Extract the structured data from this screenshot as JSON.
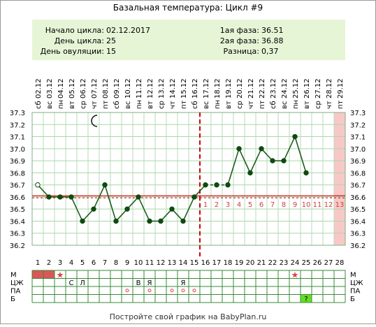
{
  "title": "Базальная температура: Цикл #9",
  "summary": {
    "cycle_start_label": "Начало цикла:",
    "cycle_start_value": "02.12.2017",
    "cycle_day_label": "День цикла:",
    "cycle_day_value": "25",
    "ovulation_day_label": "День овуляции:",
    "ovulation_day_value": "15",
    "phase1_label": "1ая фаза:",
    "phase1_value": "36.51",
    "phase2_label": "2ая фаза:",
    "phase2_value": "36.88",
    "diff_label": "Разница:",
    "diff_value": "0,37"
  },
  "footer": "Постройте свой график на BabyPlan.ru",
  "colors": {
    "summary_bg": "#e6f5d6",
    "line": "#1f5e1f",
    "point": "#0f4a0f",
    "coverline": "#cc0000",
    "ovulation_line": "#cc0000",
    "phase_label": "#d04040",
    "forecast_fill": "#f8c8c8",
    "bar_fill": "#d95757",
    "star": "#e04040",
    "green_cell": "#66dd22"
  },
  "chart_data": {
    "type": "line",
    "days": [
      1,
      2,
      3,
      4,
      5,
      6,
      7,
      8,
      9,
      10,
      11,
      12,
      13,
      14,
      15,
      16,
      17,
      18,
      19,
      20,
      21,
      22,
      23,
      24,
      25,
      26,
      27,
      28
    ],
    "dates": [
      "02.12",
      "03.12",
      "04.12",
      "05.12",
      "06.12",
      "07.12",
      "08.12",
      "09.12",
      "10.12",
      "11.12",
      "12.12",
      "13.12",
      "14.12",
      "15.12",
      "16.12",
      "17.12",
      "18.12",
      "19.12",
      "20.12",
      "21.12",
      "22.12",
      "23.12",
      "24.12",
      "25.12",
      "26.12",
      "27.12",
      "28.12",
      "29.12"
    ],
    "weekdays": [
      "сб",
      "вс",
      "пн",
      "вт",
      "ср",
      "чт",
      "пт",
      "сб",
      "вс",
      "пн",
      "вт",
      "ср",
      "чт",
      "пт",
      "сб",
      "вс",
      "пн",
      "вт",
      "ср",
      "чт",
      "пт",
      "сб",
      "вс",
      "пн",
      "вт",
      "ср",
      "чт",
      "пт"
    ],
    "temperatures": [
      36.7,
      36.6,
      36.6,
      36.6,
      36.4,
      36.5,
      36.7,
      36.4,
      36.5,
      36.6,
      36.4,
      36.4,
      36.5,
      36.4,
      36.6,
      36.7,
      36.7,
      36.7,
      37.0,
      36.8,
      37.0,
      36.9,
      36.9,
      37.1,
      36.8,
      null,
      null,
      null
    ],
    "open_points": [
      1
    ],
    "dashed_segments": [
      [
        16,
        18
      ]
    ],
    "ylim": [
      36.2,
      37.3
    ],
    "yticks": [
      "37.3",
      "37.2",
      "37.1",
      "37.0",
      "36.9",
      "36.8",
      "36.7",
      "36.6",
      "36.5",
      "36.4",
      "36.3",
      "36.2"
    ],
    "coverline": 36.61,
    "ovulation_day": 15,
    "phase2_day_labels": [
      "1",
      "2",
      "3",
      "4",
      "5",
      "6",
      "7",
      "8",
      "9",
      "10",
      "11",
      "12",
      "13"
    ],
    "forecast_day": 28,
    "moon_day": 6
  },
  "table": {
    "row_labels": [
      "М",
      "ЦЖ",
      "ПА",
      "Б"
    ],
    "M_bar_days": [
      1,
      2
    ],
    "M_star_days": [
      3,
      24
    ],
    "TsZh_cells": [
      {
        "day": 4,
        "text": "С"
      },
      {
        "day": 5,
        "text": "Л"
      },
      {
        "day": 10,
        "text": "В"
      },
      {
        "day": 11,
        "text": "Я"
      },
      {
        "day": 14,
        "text": "Я"
      }
    ],
    "PA_circle_days": [
      9,
      11,
      13,
      14,
      15
    ],
    "B_green_day": 25,
    "B_green_text": "?"
  }
}
